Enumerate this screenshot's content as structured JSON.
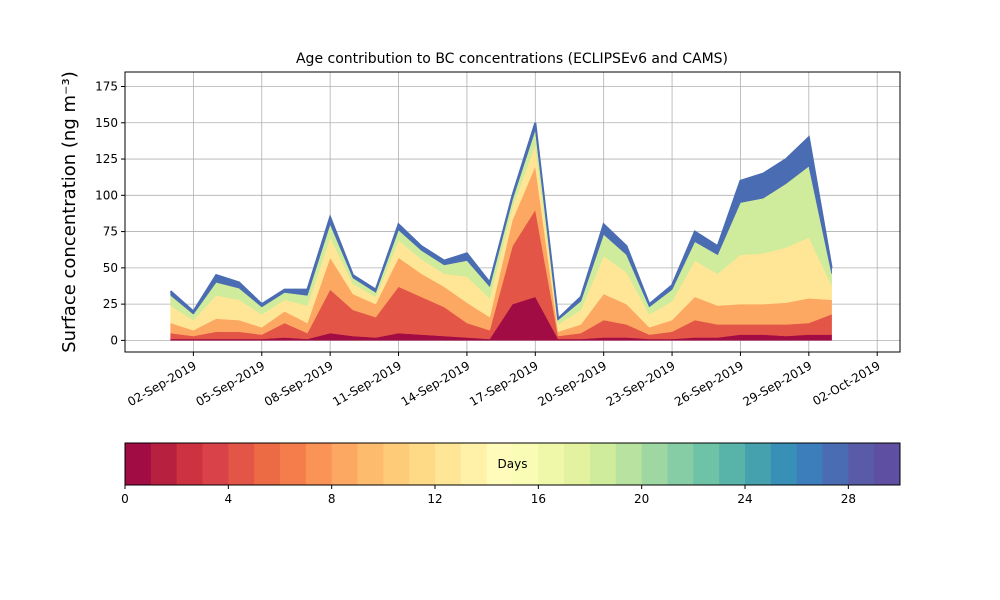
{
  "chart_data": {
    "type": "stacked_area",
    "title": "Age contribution to BC concentrations (ECLIPSEv6 and CAMS)",
    "ylabel": "Surface concentration (ng m⁻³)",
    "x": [
      "2019-09-01",
      "2019-09-02",
      "2019-09-03",
      "2019-09-04",
      "2019-09-05",
      "2019-09-06",
      "2019-09-07",
      "2019-09-08",
      "2019-09-09",
      "2019-09-10",
      "2019-09-11",
      "2019-09-12",
      "2019-09-13",
      "2019-09-14",
      "2019-09-15",
      "2019-09-16",
      "2019-09-17",
      "2019-09-18",
      "2019-09-19",
      "2019-09-20",
      "2019-09-21",
      "2019-09-22",
      "2019-09-23",
      "2019-09-24",
      "2019-09-25",
      "2019-09-26",
      "2019-09-27",
      "2019-09-28",
      "2019-09-29",
      "2019-09-30"
    ],
    "series": [
      {
        "color": "#a00c43",
        "values": [
          1,
          1,
          1,
          1,
          1,
          2,
          1,
          5,
          3,
          2,
          5,
          4,
          3,
          2,
          1,
          25,
          30,
          1,
          1,
          2,
          2,
          1,
          1,
          2,
          2,
          4,
          4,
          3,
          4,
          4
        ]
      },
      {
        "color": "#e35546",
        "values": [
          4,
          2,
          5,
          5,
          3,
          10,
          4,
          30,
          18,
          14,
          32,
          26,
          20,
          10,
          6,
          40,
          60,
          2,
          4,
          12,
          9,
          3,
          5,
          12,
          9,
          7,
          7,
          8,
          8,
          14
        ]
      },
      {
        "color": "#fca862",
        "values": [
          7,
          4,
          9,
          8,
          5,
          8,
          7,
          22,
          11,
          9,
          20,
          16,
          14,
          14,
          9,
          18,
          30,
          3,
          6,
          18,
          14,
          5,
          8,
          16,
          13,
          14,
          14,
          15,
          17,
          10
        ]
      },
      {
        "color": "#fee696",
        "values": [
          12,
          7,
          16,
          14,
          9,
          8,
          12,
          14,
          7,
          5,
          12,
          10,
          9,
          18,
          13,
          9,
          15,
          5,
          10,
          26,
          22,
          9,
          13,
          25,
          22,
          34,
          35,
          38,
          42,
          10
        ]
      },
      {
        "color": "#cfeb9c",
        "values": [
          7,
          4,
          9,
          8,
          5,
          5,
          7,
          9,
          4,
          3,
          7,
          6,
          6,
          11,
          8,
          5,
          10,
          3,
          6,
          15,
          12,
          5,
          8,
          13,
          13,
          36,
          38,
          44,
          49,
          8
        ]
      },
      {
        "color": "#4a6cb3",
        "values": [
          3,
          2,
          5,
          4,
          2,
          2,
          4,
          5,
          2,
          2,
          4,
          3,
          3,
          5,
          3,
          3,
          5,
          1,
          3,
          7,
          6,
          2,
          3,
          7,
          6,
          15,
          17,
          17,
          20,
          4
        ]
      }
    ],
    "xlim": [
      "2019-08-30",
      "2019-10-03"
    ],
    "xticks": [
      {
        "value": "2019-09-02",
        "label": "02-Sep-2019"
      },
      {
        "value": "2019-09-05",
        "label": "05-Sep-2019"
      },
      {
        "value": "2019-09-08",
        "label": "08-Sep-2019"
      },
      {
        "value": "2019-09-11",
        "label": "11-Sep-2019"
      },
      {
        "value": "2019-09-14",
        "label": "14-Sep-2019"
      },
      {
        "value": "2019-09-17",
        "label": "17-Sep-2019"
      },
      {
        "value": "2019-09-20",
        "label": "20-Sep-2019"
      },
      {
        "value": "2019-09-23",
        "label": "23-Sep-2019"
      },
      {
        "value": "2019-09-26",
        "label": "26-Sep-2019"
      },
      {
        "value": "2019-09-29",
        "label": "29-Sep-2019"
      },
      {
        "value": "2019-10-02",
        "label": "02-Oct-2019"
      }
    ],
    "ylim": [
      -8,
      185
    ],
    "yticks": [
      0,
      25,
      50,
      75,
      100,
      125,
      150,
      175
    ],
    "grid": true,
    "colorbar": {
      "label": "Days",
      "lim": [
        0,
        30
      ],
      "ticks": [
        0,
        4,
        8,
        12,
        16,
        20,
        24,
        28
      ],
      "colors": [
        "#a00c43",
        "#b8203f",
        "#cc323f",
        "#da4249",
        "#e35546",
        "#ec6a44",
        "#f47d4b",
        "#f99356",
        "#fca862",
        "#fdbb6d",
        "#fecb79",
        "#fed986",
        "#fee696",
        "#fff1a8",
        "#fffcbb",
        "#f8fcb5",
        "#eef8a8",
        "#e2f29e",
        "#cfeb9c",
        "#b8e2a0",
        "#9fd7a3",
        "#86cda5",
        "#6ec2a5",
        "#58b3a8",
        "#45a1ad",
        "#3990b6",
        "#3c7ebb",
        "#4a6cb3",
        "#5a5ba8",
        "#5e4fa2"
      ]
    }
  }
}
